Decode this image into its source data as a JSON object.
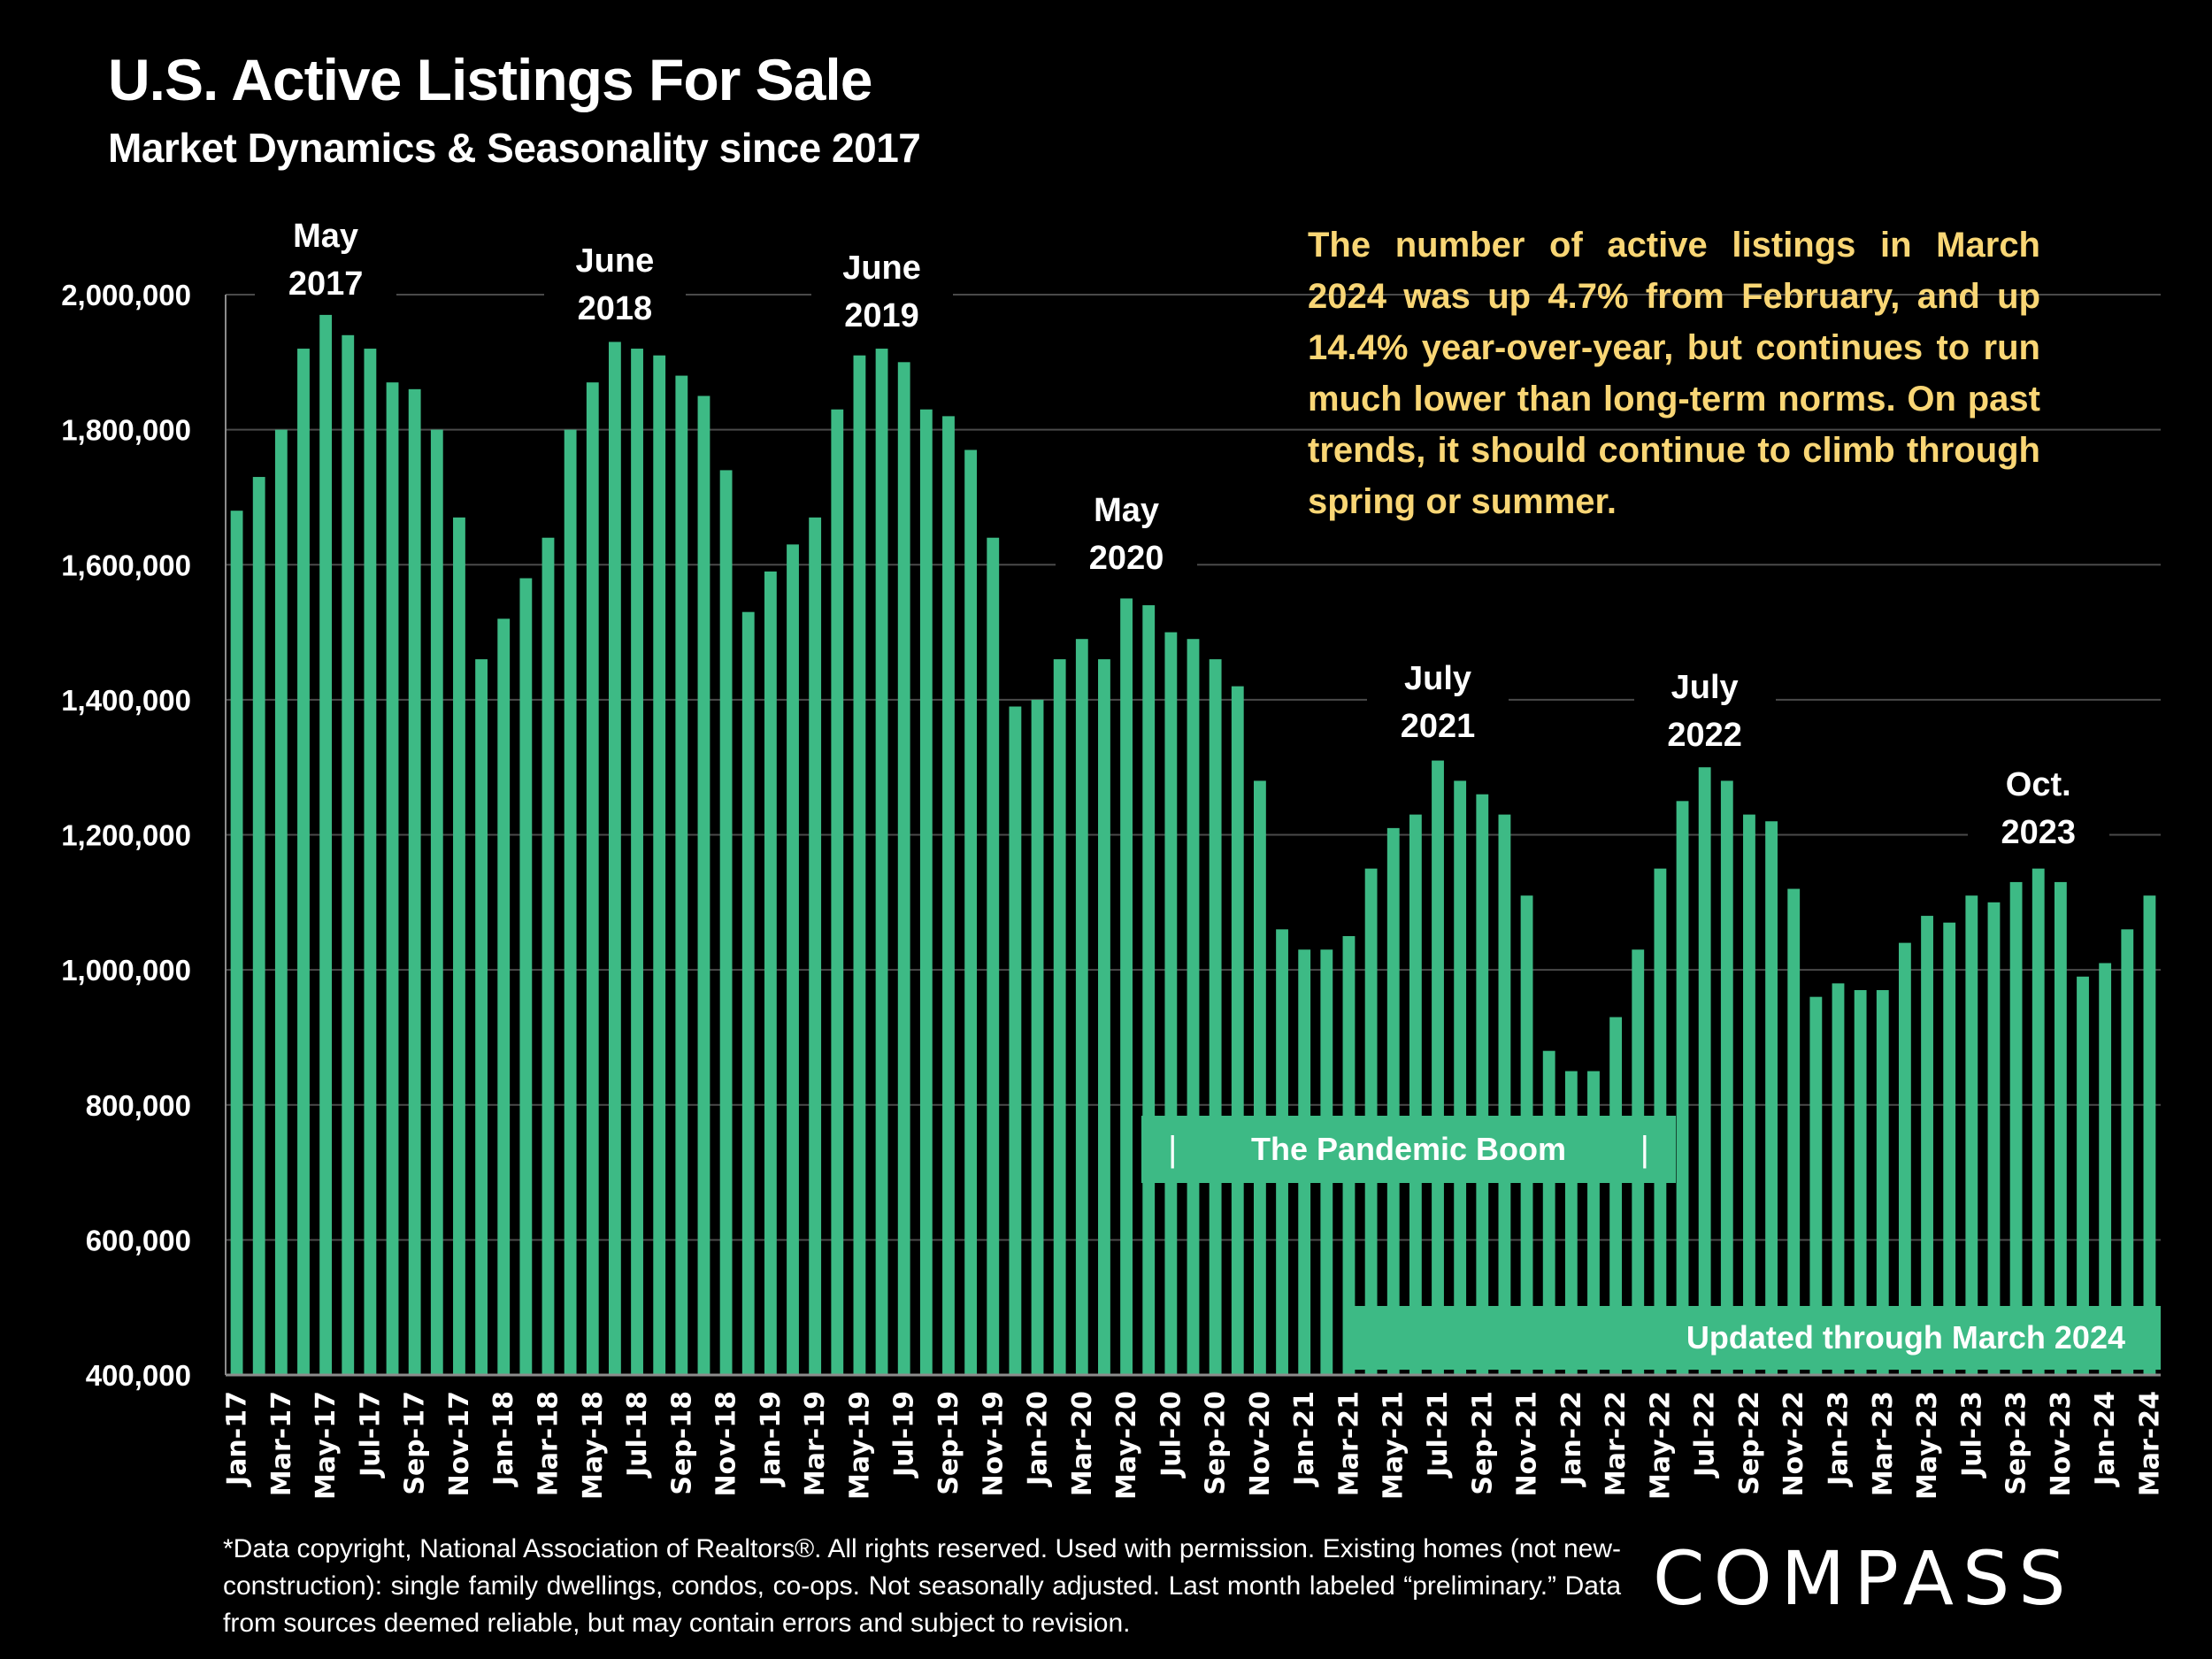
{
  "header": {
    "title": "U.S. Active Listings For Sale",
    "subtitle": "Market Dynamics & Seasonality since 2017"
  },
  "commentary": "The number of active listings in March 2024 was up 4.7% from February, and up 14.4% year-over-year, but continues to run much lower than long-term norms. On past trends, it should continue to climb through spring or summer.",
  "annotations": {
    "peak_2017": [
      "May",
      "2017"
    ],
    "peak_2018": [
      "June",
      "2018"
    ],
    "peak_2019": [
      "June",
      "2019"
    ],
    "peak_2020": [
      "May",
      "2020"
    ],
    "peak_2021": [
      "July",
      "2021"
    ],
    "peak_2022": [
      "July",
      "2022"
    ],
    "peak_2023": [
      "Oct.",
      "2023"
    ]
  },
  "pandemic_box": {
    "left_mark": "|",
    "label": "The Pandemic Boom",
    "right_mark": "|"
  },
  "updated_box": "Updated through March 2024",
  "footer": "*Data copyright, National Association of Realtors®. All rights reserved. Used with permission. Existing homes (not new-construction): single family dwellings, condos, co-ops. Not seasonally adjusted. Last month labeled “preliminary.” Data from sources deemed reliable, but may contain errors and subject to revision.",
  "logo": "COMPASS",
  "colors": {
    "bar": "#3DBA85",
    "commentary": "#F9D675",
    "grid": "#4a4a4a",
    "background": "#000000"
  },
  "chart_data": {
    "type": "bar",
    "title": "U.S. Active Listings For Sale",
    "subtitle": "Market Dynamics & Seasonality since 2017",
    "xlabel": "",
    "ylabel": "",
    "ylim": [
      400000,
      2000000
    ],
    "yticks": [
      400000,
      600000,
      800000,
      1000000,
      1200000,
      1400000,
      1600000,
      1800000,
      2000000
    ],
    "ytick_labels": [
      "400,000",
      "600,000",
      "800,000",
      "1,000,000",
      "1,200,000",
      "1,400,000",
      "1,600,000",
      "1,800,000",
      "2,000,000"
    ],
    "grid": true,
    "categories": [
      "Jan-17",
      "Feb-17",
      "Mar-17",
      "Apr-17",
      "May-17",
      "Jun-17",
      "Jul-17",
      "Aug-17",
      "Sep-17",
      "Oct-17",
      "Nov-17",
      "Dec-17",
      "Jan-18",
      "Feb-18",
      "Mar-18",
      "Apr-18",
      "May-18",
      "Jun-18",
      "Jul-18",
      "Aug-18",
      "Sep-18",
      "Oct-18",
      "Nov-18",
      "Dec-18",
      "Jan-19",
      "Feb-19",
      "Mar-19",
      "Apr-19",
      "May-19",
      "Jun-19",
      "Jul-19",
      "Aug-19",
      "Sep-19",
      "Oct-19",
      "Nov-19",
      "Dec-19",
      "Jan-20",
      "Feb-20",
      "Mar-20",
      "Apr-20",
      "May-20",
      "Jun-20",
      "Jul-20",
      "Aug-20",
      "Sep-20",
      "Oct-20",
      "Nov-20",
      "Dec-20",
      "Jan-21",
      "Feb-21",
      "Mar-21",
      "Apr-21",
      "May-21",
      "Jun-21",
      "Jul-21",
      "Aug-21",
      "Sep-21",
      "Oct-21",
      "Nov-21",
      "Dec-21",
      "Jan-22",
      "Feb-22",
      "Mar-22",
      "Apr-22",
      "May-22",
      "Jun-22",
      "Jul-22",
      "Aug-22",
      "Sep-22",
      "Oct-22",
      "Nov-22",
      "Dec-22",
      "Jan-23",
      "Feb-23",
      "Mar-23",
      "Apr-23",
      "May-23",
      "Jun-23",
      "Jul-23",
      "Aug-23",
      "Sep-23",
      "Oct-23",
      "Nov-23",
      "Dec-23",
      "Jan-24",
      "Feb-24",
      "Mar-24"
    ],
    "xtick_labels_shown": "every other month starting Jan-17",
    "series": [
      {
        "name": "Active Listings",
        "values": [
          1680000,
          1730000,
          1800000,
          1920000,
          1970000,
          1940000,
          1920000,
          1870000,
          1860000,
          1800000,
          1670000,
          1460000,
          1520000,
          1580000,
          1640000,
          1800000,
          1870000,
          1930000,
          1920000,
          1910000,
          1880000,
          1850000,
          1740000,
          1530000,
          1590000,
          1630000,
          1670000,
          1830000,
          1910000,
          1920000,
          1900000,
          1830000,
          1820000,
          1770000,
          1640000,
          1390000,
          1400000,
          1460000,
          1490000,
          1460000,
          1550000,
          1540000,
          1500000,
          1490000,
          1460000,
          1420000,
          1280000,
          1060000,
          1030000,
          1030000,
          1050000,
          1150000,
          1210000,
          1230000,
          1310000,
          1280000,
          1260000,
          1230000,
          1110000,
          880000,
          850000,
          850000,
          930000,
          1030000,
          1150000,
          1250000,
          1300000,
          1280000,
          1230000,
          1220000,
          1120000,
          960000,
          980000,
          970000,
          970000,
          1040000,
          1080000,
          1070000,
          1110000,
          1100000,
          1130000,
          1150000,
          1130000,
          990000,
          1010000,
          1060000,
          1110000
        ]
      }
    ],
    "annotations": [
      {
        "text": "May 2017",
        "category": "May-17"
      },
      {
        "text": "June 2018",
        "category": "Jun-18"
      },
      {
        "text": "June 2019",
        "category": "Jun-19"
      },
      {
        "text": "May 2020",
        "category": "May-20"
      },
      {
        "text": "July 2021",
        "category": "Jul-21"
      },
      {
        "text": "July 2022",
        "category": "Jul-22"
      },
      {
        "text": "Oct. 2023",
        "category": "Oct-23"
      }
    ],
    "legend": "none"
  }
}
